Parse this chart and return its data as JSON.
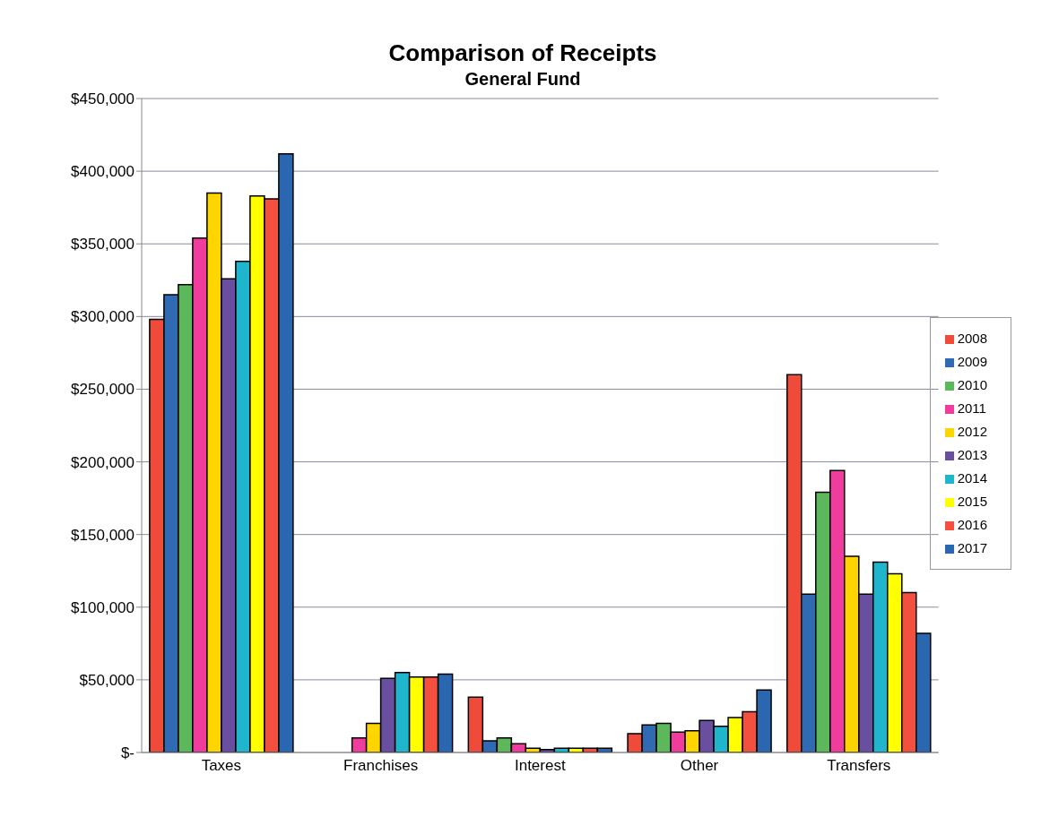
{
  "chart_data": {
    "type": "bar",
    "title": "Comparison of Receipts",
    "subtitle": "General Fund",
    "categories": [
      "Taxes",
      "Franchises",
      "Interest",
      "Other",
      "Transfers"
    ],
    "series": [
      {
        "name": "2008",
        "color": "#f04a3a",
        "values": [
          298000,
          null,
          38000,
          13000,
          260000
        ]
      },
      {
        "name": "2009",
        "color": "#2f6ab3",
        "values": [
          315000,
          null,
          8000,
          19000,
          109000
        ]
      },
      {
        "name": "2010",
        "color": "#5cb85a",
        "values": [
          322000,
          null,
          10000,
          20000,
          179000
        ]
      },
      {
        "name": "2011",
        "color": "#f03c9c",
        "values": [
          354000,
          10000,
          6000,
          14000,
          194000
        ]
      },
      {
        "name": "2012",
        "color": "#ffd500",
        "values": [
          385000,
          20000,
          3000,
          15000,
          135000
        ]
      },
      {
        "name": "2013",
        "color": "#6a4fa0",
        "values": [
          326000,
          51000,
          2000,
          22000,
          109000
        ]
      },
      {
        "name": "2014",
        "color": "#1fb5cc",
        "values": [
          338000,
          55000,
          3000,
          18000,
          131000
        ]
      },
      {
        "name": "2015",
        "color": "#ffff00",
        "values": [
          383000,
          52000,
          3000,
          24000,
          123000
        ]
      },
      {
        "name": "2016",
        "color": "#f4503f",
        "values": [
          381000,
          52000,
          3000,
          28000,
          110000
        ]
      },
      {
        "name": "2017",
        "color": "#2a67b0",
        "values": [
          412000,
          54000,
          3000,
          43000,
          82000
        ]
      }
    ],
    "ylim": [
      0,
      450000
    ],
    "yticks": [
      {
        "value": 0,
        "label": "$-"
      },
      {
        "value": 50000,
        "label": "$50,000"
      },
      {
        "value": 100000,
        "label": "$100,000"
      },
      {
        "value": 150000,
        "label": "$150,000"
      },
      {
        "value": 200000,
        "label": "$200,000"
      },
      {
        "value": 250000,
        "label": "$250,000"
      },
      {
        "value": 300000,
        "label": "$300,000"
      },
      {
        "value": 350000,
        "label": "$350,000"
      },
      {
        "value": 400000,
        "label": "$400,000"
      },
      {
        "value": 450000,
        "label": "$450,000"
      }
    ],
    "grid": "y",
    "legend": "right"
  }
}
